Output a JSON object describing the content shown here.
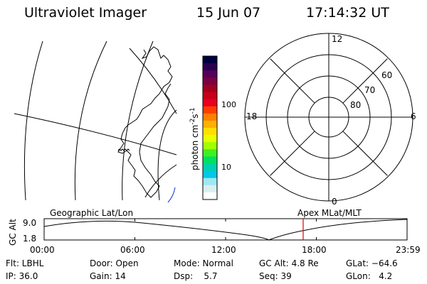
{
  "header": {
    "instrument": "Ultraviolet Imager",
    "date": "15 Jun 07",
    "time": "17:14:32 UT"
  },
  "colorbar": {
    "unit_label": "photon cm",
    "unit_exp1": "-2",
    "unit_s": "s",
    "unit_exp2": "-1",
    "tick_100": "100",
    "tick_10": "10",
    "colors": [
      "#000040",
      "#2a0050",
      "#55005a",
      "#7a0040",
      "#a00020",
      "#c80018",
      "#e8001e",
      "#ff3c00",
      "#ff8000",
      "#ffb000",
      "#ffe000",
      "#e8ff00",
      "#a0ff00",
      "#40f020",
      "#00e060",
      "#00d0b0",
      "#00c8e8",
      "#a0e8f0",
      "#d8f0f0",
      "#ffffff"
    ]
  },
  "polar": {
    "label_12": "12",
    "label_18": "18",
    "label_6": "6",
    "label_0": "0",
    "label_60": "60",
    "label_70": "70",
    "label_80": "80"
  },
  "timeline": {
    "left_title": "Geographic Lat/Lon",
    "right_title": "Apex MLat/MLT",
    "ylabel": "GC Alt",
    "y_top": "9.0",
    "y_bottom": "1.8",
    "ticks": [
      "00:00",
      "06:00",
      "12:00",
      "18:00",
      "23:59"
    ],
    "marker_color": "#e00000"
  },
  "info": {
    "flt": "Flt: LBHL",
    "ip": "IP: 36.0",
    "door": "Door: Open",
    "gain": "Gain: 14",
    "mode": "Mode: Normal",
    "dsp": "Dsp:    5.7",
    "gcalt": "GC Alt: 4.8 Re",
    "seq": "Seq: 39",
    "glat": "GLat: −64.6",
    "glon": "GLon:   4.2"
  }
}
